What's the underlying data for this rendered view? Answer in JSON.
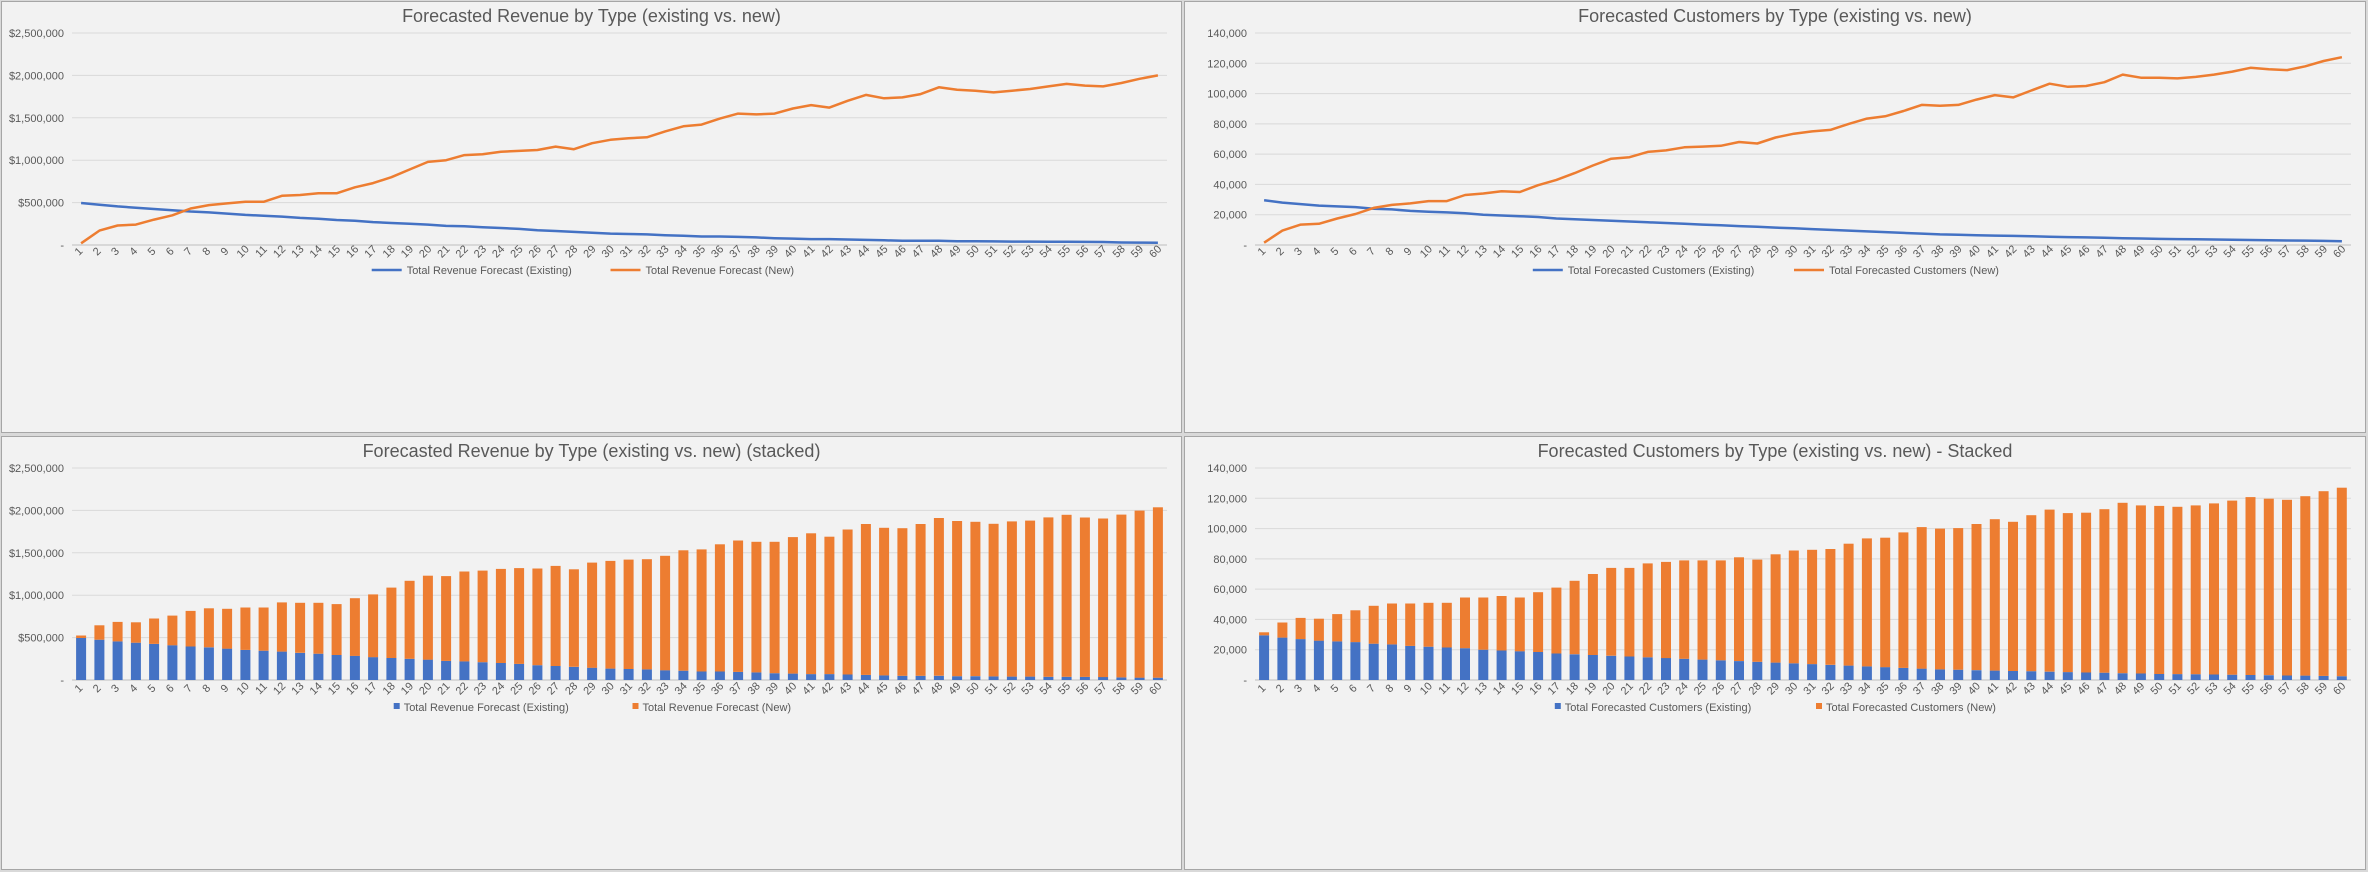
{
  "colors": {
    "existing": "#4472c4",
    "new": "#ed7d31",
    "grid": "#d9d9d9",
    "text": "#595959"
  },
  "chart_data": [
    {
      "type": "line",
      "title": "Forecasted Revenue by Type (existing vs. new)",
      "xlabel": "",
      "ylabel": "",
      "ylim": [
        0,
        2500000
      ],
      "yticks": [
        "-",
        "$500,000",
        "$1,000,000",
        "$1,500,000",
        "$2,000,000",
        "$2,500,000"
      ],
      "grid": true,
      "legend": "bottom",
      "x": [
        1,
        2,
        3,
        4,
        5,
        6,
        7,
        8,
        9,
        10,
        11,
        12,
        13,
        14,
        15,
        16,
        17,
        18,
        19,
        20,
        21,
        22,
        23,
        24,
        25,
        26,
        27,
        28,
        29,
        30,
        31,
        32,
        33,
        34,
        35,
        36,
        37,
        38,
        39,
        40,
        41,
        42,
        43,
        44,
        45,
        46,
        47,
        48,
        49,
        50,
        51,
        52,
        53,
        54,
        55,
        56,
        57,
        58,
        59,
        60
      ],
      "series": [
        {
          "name": "Total Revenue Forecast (Existing)",
          "values": [
            495000,
            475000,
            455000,
            440000,
            425000,
            410000,
            395000,
            385000,
            370000,
            355000,
            345000,
            335000,
            320000,
            310000,
            295000,
            285000,
            270000,
            260000,
            250000,
            240000,
            225000,
            220000,
            210000,
            200000,
            190000,
            175000,
            165000,
            155000,
            145000,
            135000,
            130000,
            125000,
            115000,
            110000,
            100000,
            100000,
            95000,
            90000,
            80000,
            75000,
            70000,
            70000,
            65000,
            60000,
            55000,
            50000,
            50000,
            50000,
            45000,
            45000,
            42000,
            40000,
            40000,
            38000,
            38000,
            36000,
            35000,
            30000,
            28000,
            27000
          ]
        },
        {
          "name": "Total Revenue Forecast (New)",
          "values": [
            20000,
            170000,
            230000,
            240000,
            300000,
            350000,
            430000,
            470000,
            490000,
            510000,
            510000,
            580000,
            590000,
            610000,
            610000,
            680000,
            730000,
            800000,
            890000,
            980000,
            1000000,
            1060000,
            1070000,
            1100000,
            1110000,
            1120000,
            1160000,
            1130000,
            1200000,
            1240000,
            1260000,
            1270000,
            1340000,
            1400000,
            1420000,
            1490000,
            1550000,
            1540000,
            1550000,
            1610000,
            1650000,
            1620000,
            1700000,
            1770000,
            1730000,
            1740000,
            1780000,
            1860000,
            1830000,
            1820000,
            1800000,
            1820000,
            1840000,
            1870000,
            1900000,
            1880000,
            1870000,
            1910000,
            1960000,
            2000000
          ]
        }
      ]
    },
    {
      "type": "line",
      "title": "Forecasted Customers by Type (existing vs. new)",
      "xlabel": "",
      "ylabel": "",
      "ylim": [
        0,
        140000
      ],
      "yticks": [
        "-",
        "20,000",
        "40,000",
        "60,000",
        "80,000",
        "100,000",
        "120,000",
        "140,000"
      ],
      "grid": true,
      "legend": "bottom",
      "x": [
        1,
        2,
        3,
        4,
        5,
        6,
        7,
        8,
        9,
        10,
        11,
        12,
        13,
        14,
        15,
        16,
        17,
        18,
        19,
        20,
        21,
        22,
        23,
        24,
        25,
        26,
        27,
        28,
        29,
        30,
        31,
        32,
        33,
        34,
        35,
        36,
        37,
        38,
        39,
        40,
        41,
        42,
        43,
        44,
        45,
        46,
        47,
        48,
        49,
        50,
        51,
        52,
        53,
        54,
        55,
        56,
        57,
        58,
        59,
        60
      ],
      "series": [
        {
          "name": "Total Forecasted Customers (Existing)",
          "values": [
            29500,
            28000,
            27000,
            26000,
            25500,
            25000,
            24000,
            23500,
            22500,
            22000,
            21500,
            21000,
            20000,
            19500,
            19000,
            18500,
            17500,
            17000,
            16500,
            16000,
            15500,
            15000,
            14500,
            14000,
            13500,
            13000,
            12500,
            12000,
            11500,
            11000,
            10500,
            10000,
            9500,
            9000,
            8500,
            8000,
            7500,
            7000,
            6800,
            6500,
            6200,
            6000,
            5800,
            5500,
            5200,
            5000,
            4800,
            4500,
            4300,
            4000,
            3900,
            3800,
            3600,
            3500,
            3300,
            3200,
            3000,
            2900,
            2700,
            2500
          ]
        },
        {
          "name": "Total Forecasted Customers (New)",
          "values": [
            1500,
            9500,
            13500,
            14000,
            17500,
            20500,
            24500,
            26500,
            27500,
            29000,
            29000,
            33000,
            34000,
            35500,
            35000,
            39500,
            43000,
            47500,
            52500,
            57000,
            58000,
            61500,
            62500,
            64500,
            65000,
            65500,
            68000,
            67000,
            71000,
            73500,
            75000,
            76000,
            80000,
            83500,
            85000,
            88500,
            92500,
            92000,
            92500,
            96000,
            99000,
            97500,
            102000,
            106500,
            104500,
            105000,
            107500,
            112500,
            110500,
            110500,
            110000,
            111000,
            112500,
            114500,
            117000,
            116000,
            115500,
            118000,
            121500,
            124000
          ]
        }
      ]
    },
    {
      "type": "bar",
      "stacked": true,
      "title": "Forecasted Revenue by Type (existing vs. new) (stacked)",
      "xlabel": "",
      "ylabel": "",
      "ylim": [
        0,
        2500000
      ],
      "yticks": [
        "-",
        "$500,000",
        "$1,000,000",
        "$1,500,000",
        "$2,000,000",
        "$2,500,000"
      ],
      "grid": true,
      "legend": "bottom",
      "categories": [
        1,
        2,
        3,
        4,
        5,
        6,
        7,
        8,
        9,
        10,
        11,
        12,
        13,
        14,
        15,
        16,
        17,
        18,
        19,
        20,
        21,
        22,
        23,
        24,
        25,
        26,
        27,
        28,
        29,
        30,
        31,
        32,
        33,
        34,
        35,
        36,
        37,
        38,
        39,
        40,
        41,
        42,
        43,
        44,
        45,
        46,
        47,
        48,
        49,
        50,
        51,
        52,
        53,
        54,
        55,
        56,
        57,
        58,
        59,
        60
      ],
      "series": [
        {
          "name": "Total Revenue Forecast (Existing)",
          "values": [
            495000,
            475000,
            455000,
            440000,
            425000,
            410000,
            395000,
            385000,
            370000,
            355000,
            345000,
            335000,
            320000,
            310000,
            295000,
            285000,
            270000,
            260000,
            250000,
            240000,
            225000,
            220000,
            210000,
            200000,
            190000,
            175000,
            165000,
            155000,
            145000,
            135000,
            130000,
            125000,
            115000,
            110000,
            100000,
            100000,
            95000,
            90000,
            80000,
            75000,
            70000,
            70000,
            65000,
            60000,
            55000,
            50000,
            50000,
            50000,
            45000,
            45000,
            42000,
            40000,
            40000,
            38000,
            38000,
            36000,
            35000,
            30000,
            28000,
            27000
          ]
        },
        {
          "name": "Total Revenue Forecast (New)",
          "values": [
            30000,
            170000,
            230000,
            240000,
            300000,
            350000,
            420000,
            460000,
            470000,
            500000,
            510000,
            580000,
            590000,
            600000,
            600000,
            680000,
            740000,
            830000,
            920000,
            990000,
            1000000,
            1060000,
            1080000,
            1110000,
            1130000,
            1140000,
            1180000,
            1150000,
            1240000,
            1270000,
            1290000,
            1300000,
            1350000,
            1420000,
            1440000,
            1500000,
            1550000,
            1540000,
            1550000,
            1610000,
            1660000,
            1620000,
            1710000,
            1780000,
            1740000,
            1740000,
            1790000,
            1860000,
            1830000,
            1820000,
            1800000,
            1830000,
            1840000,
            1880000,
            1910000,
            1880000,
            1870000,
            1920000,
            1970000,
            2010000
          ]
        }
      ]
    },
    {
      "type": "bar",
      "stacked": true,
      "title": "Forecasted Customers by Type (existing vs. new) - Stacked",
      "xlabel": "",
      "ylabel": "",
      "ylim": [
        0,
        140000
      ],
      "yticks": [
        "-",
        "20,000",
        "40,000",
        "60,000",
        "80,000",
        "100,000",
        "120,000",
        "140,000"
      ],
      "grid": true,
      "legend": "bottom",
      "categories": [
        1,
        2,
        3,
        4,
        5,
        6,
        7,
        8,
        9,
        10,
        11,
        12,
        13,
        14,
        15,
        16,
        17,
        18,
        19,
        20,
        21,
        22,
        23,
        24,
        25,
        26,
        27,
        28,
        29,
        30,
        31,
        32,
        33,
        34,
        35,
        36,
        37,
        38,
        39,
        40,
        41,
        42,
        43,
        44,
        45,
        46,
        47,
        48,
        49,
        50,
        51,
        52,
        53,
        54,
        55,
        56,
        57,
        58,
        59,
        60
      ],
      "series": [
        {
          "name": "Total Forecasted Customers (Existing)",
          "values": [
            29500,
            28000,
            27000,
            26000,
            25500,
            25000,
            24000,
            23500,
            22500,
            22000,
            21500,
            21000,
            20000,
            19500,
            19000,
            18500,
            17500,
            17000,
            16500,
            16000,
            15500,
            15000,
            14500,
            14000,
            13500,
            13000,
            12500,
            12000,
            11500,
            11000,
            10500,
            10000,
            9500,
            9000,
            8500,
            8000,
            7500,
            7000,
            6800,
            6500,
            6200,
            6000,
            5800,
            5500,
            5200,
            5000,
            4800,
            4500,
            4300,
            4000,
            3900,
            3800,
            3600,
            3500,
            3300,
            3200,
            3000,
            2900,
            2700,
            2500
          ]
        },
        {
          "name": "Total Forecasted Customers (New)",
          "values": [
            2000,
            10000,
            14000,
            14500,
            18000,
            21000,
            25000,
            27000,
            28000,
            29000,
            29500,
            33500,
            34500,
            36000,
            35500,
            39500,
            43500,
            48500,
            53500,
            58000,
            58500,
            62000,
            63500,
            65000,
            65500,
            66000,
            68500,
            67500,
            71500,
            74500,
            75500,
            76500,
            80500,
            84500,
            85500,
            89500,
            93500,
            93000,
            93500,
            96500,
            100000,
            98500,
            103000,
            107000,
            105000,
            105500,
            108000,
            112500,
            111000,
            111000,
            110500,
            111500,
            113000,
            115000,
            117500,
            116500,
            116000,
            118500,
            122000,
            124500
          ]
        }
      ]
    }
  ]
}
